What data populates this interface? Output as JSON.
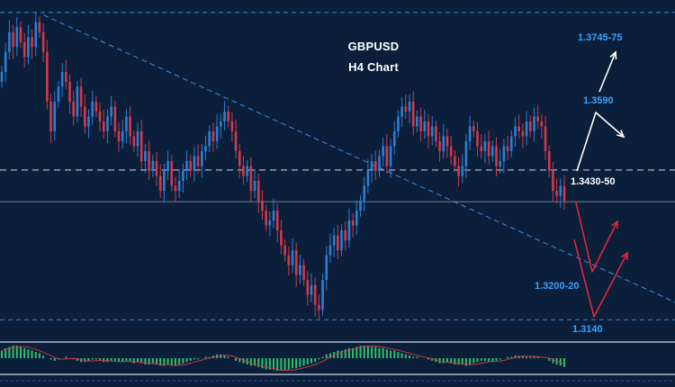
{
  "title": "GBPUSD",
  "subtitle": "H4 Chart",
  "colors": {
    "background": "#0b1e3a",
    "bull_candle": "#2b7fd4",
    "bear_candle": "#d23a4a",
    "trendline": "#3d8ee6",
    "resistance_dashed": "#3d8ee6",
    "current_price_line": "#b9c4d2",
    "key_level": "#c9ced6",
    "projection_red": "#e0283a",
    "projection_white": "#ffffff",
    "label_blue": "#3aa3ff",
    "label_white": "#ffffff",
    "oscillator_green": "#2ec26a",
    "oscillator_signal": "#c23a4a",
    "panel_border": "#cfd8e3"
  },
  "chart_data": {
    "type": "candlestick",
    "symbol": "GBPUSD",
    "timeframe": "H4",
    "ylim": [
      1.3095,
      1.3785
    ],
    "x_count": 150,
    "levels": [
      {
        "label": "1.3745-75",
        "value": 1.376,
        "style": "dashed",
        "color": "blue"
      },
      {
        "label": "1.3590",
        "value": 1.359,
        "style": "none",
        "color": "blue"
      },
      {
        "label": "1.3430-50",
        "value": 1.3442,
        "style": "dashed",
        "color": "white"
      },
      {
        "label": "1.3200-20",
        "value": 1.321,
        "style": "none",
        "color": "blue"
      },
      {
        "label": "1.3140",
        "value": 1.314,
        "style": "dashed",
        "color": "blue"
      }
    ],
    "current_price": 1.3378,
    "trendline": {
      "from": [
        11,
        1.3755
      ],
      "to": [
        190,
        1.3135
      ]
    },
    "closes": [
      1.364,
      1.368,
      1.372,
      1.369,
      1.373,
      1.37,
      1.367,
      1.371,
      1.369,
      1.374,
      1.372,
      1.368,
      1.358,
      1.352,
      1.358,
      1.361,
      1.364,
      1.362,
      1.358,
      1.355,
      1.361,
      1.357,
      1.353,
      1.355,
      1.358,
      1.356,
      1.354,
      1.352,
      1.355,
      1.357,
      1.352,
      1.35,
      1.352,
      1.355,
      1.351,
      1.349,
      1.352,
      1.346,
      1.348,
      1.344,
      1.346,
      1.343,
      1.34,
      1.344,
      1.346,
      1.341,
      1.34,
      1.342,
      1.344,
      1.346,
      1.344,
      1.347,
      1.345,
      1.348,
      1.349,
      1.352,
      1.35,
      1.353,
      1.354,
      1.356,
      1.354,
      1.352,
      1.348,
      1.345,
      1.343,
      1.345,
      1.34,
      1.342,
      1.338,
      1.336,
      1.333,
      1.334,
      1.336,
      1.332,
      1.329,
      1.327,
      1.325,
      1.328,
      1.323,
      1.325,
      1.322,
      1.319,
      1.321,
      1.317,
      1.316,
      1.322,
      1.327,
      1.329,
      1.331,
      1.328,
      1.332,
      1.33,
      1.334,
      1.333,
      1.336,
      1.338,
      1.341,
      1.344,
      1.346,
      1.344,
      1.347,
      1.349,
      1.345,
      1.349,
      1.352,
      1.355,
      1.357,
      1.356,
      1.358,
      1.353,
      1.355,
      1.352,
      1.354,
      1.351,
      1.353,
      1.35,
      1.348,
      1.351,
      1.349,
      1.347,
      1.345,
      1.343,
      1.345,
      1.35,
      1.353,
      1.352,
      1.349,
      1.348,
      1.35,
      1.347,
      1.349,
      1.345,
      1.346,
      1.349,
      1.348,
      1.351,
      1.353,
      1.352,
      1.351,
      1.354,
      1.352,
      1.355,
      1.354,
      1.353,
      1.348,
      1.344,
      1.34,
      1.339,
      1.341,
      1.338
    ]
  },
  "oscillator": {
    "values": [
      0.6,
      0.8,
      0.9,
      1.0,
      1.0,
      0.9,
      0.8,
      0.7,
      0.6,
      0.5,
      0.4,
      0.2,
      0.0,
      -0.1,
      -0.2,
      -0.1,
      0.0,
      0.1,
      0.0,
      -0.1,
      -0.2,
      -0.3,
      -0.3,
      -0.2,
      -0.1,
      -0.1,
      -0.2,
      -0.3,
      -0.3,
      -0.2,
      -0.2,
      -0.3,
      -0.3,
      -0.2,
      -0.3,
      -0.4,
      -0.3,
      -0.4,
      -0.5,
      -0.5,
      -0.4,
      -0.5,
      -0.6,
      -0.6,
      -0.5,
      -0.6,
      -0.6,
      -0.5,
      -0.4,
      -0.3,
      -0.2,
      -0.1,
      -0.1,
      0.0,
      0.1,
      0.1,
      0.2,
      0.3,
      0.3,
      0.2,
      0.1,
      0.0,
      -0.2,
      -0.3,
      -0.4,
      -0.5,
      -0.6,
      -0.6,
      -0.7,
      -0.8,
      -0.9,
      -0.9,
      -0.9,
      -1.0,
      -1.0,
      -1.0,
      -0.9,
      -0.8,
      -0.8,
      -0.7,
      -0.6,
      -0.5,
      -0.4,
      -0.3,
      -0.1,
      0.1,
      0.3,
      0.4,
      0.5,
      0.6,
      0.6,
      0.7,
      0.8,
      0.8,
      0.9,
      1.0,
      1.0,
      1.0,
      0.9,
      0.9,
      0.8,
      0.8,
      0.7,
      0.6,
      0.6,
      0.5,
      0.4,
      0.3,
      0.2,
      0.1,
      0.1,
      0.0,
      0.0,
      -0.1,
      -0.2,
      -0.3,
      -0.4,
      -0.4,
      -0.3,
      -0.4,
      -0.5,
      -0.5,
      -0.5,
      -0.6,
      -0.5,
      -0.4,
      -0.3,
      -0.2,
      -0.2,
      -0.3,
      -0.3,
      -0.2,
      -0.1,
      0.0,
      0.1,
      0.1,
      0.2,
      0.2,
      0.2,
      0.1,
      0.1,
      0.1,
      0.1,
      0.0,
      0.0,
      -0.2,
      -0.4,
      -0.5,
      -0.6,
      -0.7
    ]
  }
}
